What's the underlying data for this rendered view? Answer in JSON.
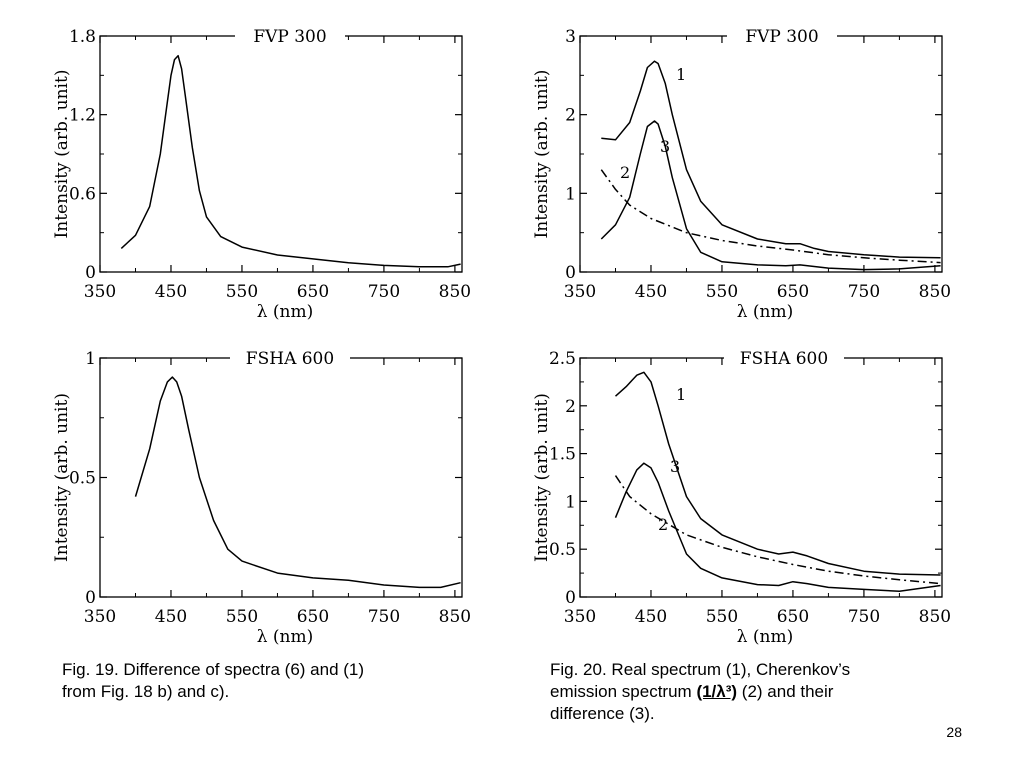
{
  "chart_data": [
    {
      "type": "line",
      "title": "FVP 300",
      "xlabel": "λ (nm)",
      "ylabel": "Intensity (arb. unit)",
      "xlim": [
        350,
        860
      ],
      "ylim": [
        0,
        1.8
      ],
      "xticks": [
        350,
        450,
        550,
        650,
        750,
        850
      ],
      "yticks": [
        0,
        0.6,
        1.2,
        1.8
      ],
      "ytick_labels": [
        "0",
        "0.6",
        "1.2",
        "1.8"
      ],
      "grid": false,
      "series": [
        {
          "label": "",
          "style": "solid",
          "x": [
            380,
            400,
            420,
            435,
            445,
            450,
            455,
            460,
            465,
            470,
            480,
            490,
            500,
            520,
            550,
            600,
            650,
            700,
            750,
            800,
            840,
            858
          ],
          "y": [
            0.18,
            0.28,
            0.5,
            0.9,
            1.3,
            1.5,
            1.62,
            1.65,
            1.55,
            1.35,
            0.95,
            0.62,
            0.42,
            0.27,
            0.19,
            0.13,
            0.1,
            0.07,
            0.05,
            0.04,
            0.04,
            0.06
          ]
        }
      ]
    },
    {
      "type": "line",
      "title": "FVP 300",
      "xlabel": "λ (nm)",
      "ylabel": "Intensity (arb. unit)",
      "xlim": [
        350,
        860
      ],
      "ylim": [
        0,
        3
      ],
      "xticks": [
        350,
        450,
        550,
        650,
        750,
        850
      ],
      "yticks": [
        0,
        1,
        2,
        3
      ],
      "ytick_labels": [
        "0",
        "1",
        "2",
        "3"
      ],
      "grid": false,
      "series": [
        {
          "label": "1",
          "style": "solid",
          "x": [
            380,
            400,
            420,
            435,
            445,
            455,
            460,
            470,
            480,
            500,
            520,
            550,
            600,
            640,
            660,
            680,
            700,
            750,
            800,
            858
          ],
          "y": [
            1.7,
            1.68,
            1.9,
            2.3,
            2.6,
            2.68,
            2.65,
            2.4,
            2.0,
            1.3,
            0.9,
            0.6,
            0.42,
            0.36,
            0.36,
            0.3,
            0.26,
            0.22,
            0.19,
            0.18
          ]
        },
        {
          "label": "2",
          "style": "dashdot",
          "x": [
            380,
            400,
            420,
            450,
            500,
            550,
            600,
            650,
            700,
            750,
            800,
            858
          ],
          "y": [
            1.3,
            1.05,
            0.85,
            0.68,
            0.5,
            0.4,
            0.33,
            0.28,
            0.22,
            0.18,
            0.15,
            0.12
          ]
        },
        {
          "label": "3",
          "style": "solid",
          "x": [
            380,
            400,
            420,
            435,
            445,
            455,
            460,
            470,
            480,
            500,
            520,
            550,
            600,
            640,
            660,
            680,
            700,
            750,
            800,
            858
          ],
          "y": [
            0.42,
            0.6,
            0.95,
            1.5,
            1.85,
            1.92,
            1.88,
            1.6,
            1.2,
            0.55,
            0.25,
            0.13,
            0.09,
            0.08,
            0.09,
            0.07,
            0.05,
            0.03,
            0.04,
            0.08
          ]
        }
      ]
    },
    {
      "type": "line",
      "title": "FSHA 600",
      "xlabel": "λ (nm)",
      "ylabel": "Intensity (arb. unit)",
      "xlim": [
        350,
        860
      ],
      "ylim": [
        0,
        1
      ],
      "xticks": [
        350,
        450,
        550,
        650,
        750,
        850
      ],
      "yticks": [
        0,
        0.5,
        1
      ],
      "ytick_labels": [
        "0",
        "0.5",
        "1"
      ],
      "grid": false,
      "series": [
        {
          "label": "",
          "style": "solid",
          "x": [
            400,
            420,
            435,
            445,
            452,
            458,
            465,
            475,
            490,
            510,
            530,
            550,
            600,
            650,
            700,
            750,
            800,
            830,
            858
          ],
          "y": [
            0.42,
            0.62,
            0.82,
            0.9,
            0.92,
            0.9,
            0.84,
            0.7,
            0.5,
            0.32,
            0.2,
            0.15,
            0.1,
            0.08,
            0.07,
            0.05,
            0.04,
            0.04,
            0.06
          ]
        }
      ]
    },
    {
      "type": "line",
      "title": "FSHA 600",
      "xlabel": "λ (nm)",
      "ylabel": "Intensity (arb. unit)",
      "xlim": [
        350,
        860
      ],
      "ylim": [
        0,
        2.5
      ],
      "xticks": [
        350,
        450,
        550,
        650,
        750,
        850
      ],
      "yticks": [
        0,
        0.5,
        1,
        1.5,
        2,
        2.5
      ],
      "ytick_labels": [
        "0",
        "0.5",
        "1",
        "1.5",
        "2",
        "2.5"
      ],
      "grid": false,
      "series": [
        {
          "label": "1",
          "style": "solid",
          "x": [
            400,
            415,
            430,
            440,
            450,
            460,
            475,
            500,
            520,
            550,
            600,
            630,
            650,
            670,
            700,
            750,
            800,
            858
          ],
          "y": [
            2.1,
            2.2,
            2.32,
            2.35,
            2.25,
            2.0,
            1.6,
            1.05,
            0.82,
            0.65,
            0.5,
            0.45,
            0.47,
            0.43,
            0.35,
            0.27,
            0.24,
            0.23
          ]
        },
        {
          "label": "2",
          "style": "dashdot",
          "x": [
            400,
            420,
            450,
            500,
            550,
            600,
            650,
            700,
            750,
            800,
            858
          ],
          "y": [
            1.27,
            1.05,
            0.87,
            0.65,
            0.52,
            0.42,
            0.34,
            0.27,
            0.22,
            0.18,
            0.14
          ]
        },
        {
          "label": "3",
          "style": "solid",
          "x": [
            400,
            415,
            430,
            440,
            450,
            460,
            475,
            500,
            520,
            550,
            600,
            630,
            650,
            670,
            700,
            750,
            800,
            858
          ],
          "y": [
            0.83,
            1.1,
            1.33,
            1.4,
            1.35,
            1.2,
            0.9,
            0.45,
            0.3,
            0.2,
            0.13,
            0.12,
            0.16,
            0.14,
            0.1,
            0.08,
            0.06,
            0.12
          ]
        }
      ]
    }
  ],
  "captions": {
    "left": {
      "line1": "Fig. 19. Difference of spectra (6) and (1)",
      "line2": "from Fig. 18 b) and c)."
    },
    "right": {
      "line1": "Fig. 20. Real spectrum (1), Cherenkov’s",
      "line2_pre": "emission spectrum ",
      "line2_emph": "(1/λ³)",
      "line2_post": " (2) and their",
      "line3": "difference (3)."
    }
  },
  "page_number": "28"
}
